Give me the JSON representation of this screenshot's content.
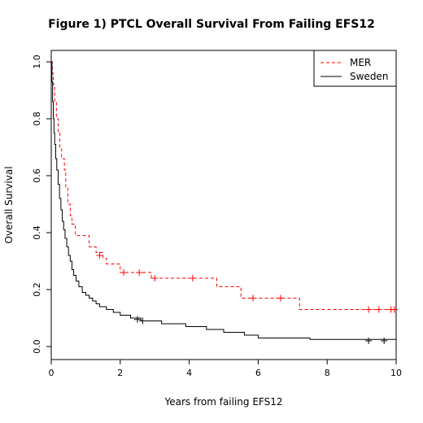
{
  "chart_data": {
    "type": "line",
    "title": "Figure 1) PTCL Overall Survival From Failing EFS12",
    "xlabel": "Years from failing EFS12",
    "ylabel": "Overall Survival",
    "xlim": [
      0,
      10
    ],
    "ylim": [
      0,
      1
    ],
    "x_ticks": [
      0,
      2,
      4,
      6,
      8,
      10
    ],
    "y_ticks": [
      0.0,
      0.2,
      0.4,
      0.6,
      0.8,
      1.0
    ],
    "x_tick_labels": [
      "0",
      "2",
      "4",
      "6",
      "8",
      "10"
    ],
    "y_tick_labels": [
      "0.0",
      "0.2",
      "0.4",
      "0.6",
      "0.8",
      "1.0"
    ],
    "grid": false,
    "legend_position": "top-right",
    "series": [
      {
        "name": "MER",
        "color": "#ff0000",
        "style": "dashed",
        "step_points": [
          [
            0,
            1.0
          ],
          [
            0.03,
            0.96
          ],
          [
            0.06,
            0.92
          ],
          [
            0.1,
            0.86
          ],
          [
            0.15,
            0.8
          ],
          [
            0.2,
            0.75
          ],
          [
            0.25,
            0.7
          ],
          [
            0.3,
            0.66
          ],
          [
            0.38,
            0.62
          ],
          [
            0.42,
            0.56
          ],
          [
            0.48,
            0.5
          ],
          [
            0.55,
            0.46
          ],
          [
            0.6,
            0.43
          ],
          [
            0.7,
            0.39
          ],
          [
            1.1,
            0.35
          ],
          [
            1.3,
            0.33
          ],
          [
            1.5,
            0.31
          ],
          [
            1.6,
            0.29
          ],
          [
            2.0,
            0.26
          ],
          [
            2.9,
            0.24
          ],
          [
            4.8,
            0.21
          ],
          [
            5.5,
            0.17
          ],
          [
            7.2,
            0.13
          ],
          [
            10,
            0.13
          ]
        ],
        "censor_points": [
          [
            1.4,
            0.32
          ],
          [
            2.1,
            0.26
          ],
          [
            2.55,
            0.26
          ],
          [
            3.0,
            0.24
          ],
          [
            4.1,
            0.24
          ],
          [
            5.85,
            0.17
          ],
          [
            6.65,
            0.17
          ],
          [
            9.2,
            0.13
          ],
          [
            9.5,
            0.13
          ],
          [
            9.85,
            0.13
          ],
          [
            9.95,
            0.13
          ]
        ]
      },
      {
        "name": "Sweden",
        "color": "#000000",
        "style": "solid",
        "step_points": [
          [
            0,
            1.0
          ],
          [
            0.02,
            0.93
          ],
          [
            0.04,
            0.86
          ],
          [
            0.06,
            0.8
          ],
          [
            0.08,
            0.75
          ],
          [
            0.1,
            0.71
          ],
          [
            0.13,
            0.66
          ],
          [
            0.16,
            0.62
          ],
          [
            0.2,
            0.57
          ],
          [
            0.24,
            0.52
          ],
          [
            0.28,
            0.48
          ],
          [
            0.32,
            0.44
          ],
          [
            0.36,
            0.41
          ],
          [
            0.4,
            0.38
          ],
          [
            0.45,
            0.35
          ],
          [
            0.5,
            0.32
          ],
          [
            0.55,
            0.3
          ],
          [
            0.6,
            0.27
          ],
          [
            0.65,
            0.25
          ],
          [
            0.72,
            0.23
          ],
          [
            0.8,
            0.21
          ],
          [
            0.9,
            0.19
          ],
          [
            1.0,
            0.18
          ],
          [
            1.1,
            0.17
          ],
          [
            1.2,
            0.16
          ],
          [
            1.3,
            0.15
          ],
          [
            1.4,
            0.14
          ],
          [
            1.6,
            0.13
          ],
          [
            1.8,
            0.12
          ],
          [
            2.0,
            0.11
          ],
          [
            2.3,
            0.1
          ],
          [
            2.6,
            0.09
          ],
          [
            3.2,
            0.08
          ],
          [
            3.9,
            0.07
          ],
          [
            4.5,
            0.06
          ],
          [
            5.0,
            0.05
          ],
          [
            5.6,
            0.04
          ],
          [
            6.0,
            0.03
          ],
          [
            7.5,
            0.025
          ],
          [
            10,
            0.02
          ]
        ],
        "censor_points": [
          [
            2.5,
            0.095
          ],
          [
            2.65,
            0.09
          ],
          [
            9.2,
            0.02
          ],
          [
            9.65,
            0.02
          ]
        ]
      }
    ]
  }
}
